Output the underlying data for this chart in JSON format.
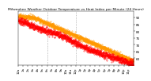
{
  "title": "Milwaukee Weather Outdoor Temperature vs Heat Index per Minute (24 Hours)",
  "bg_color": "#ffffff",
  "line1_color": "#ff0000",
  "line2_color": "#ff9900",
  "vline_color": "#888888",
  "ylabel_fontsize": 3.0,
  "xlabel_fontsize": 2.8,
  "title_fontsize": 3.2,
  "ylim": [
    55,
    95
  ],
  "yticks": [
    60,
    65,
    70,
    75,
    80,
    85,
    90
  ],
  "n_points": 1440,
  "vline_positions": [
    360,
    720
  ],
  "marker_size": 0.6
}
